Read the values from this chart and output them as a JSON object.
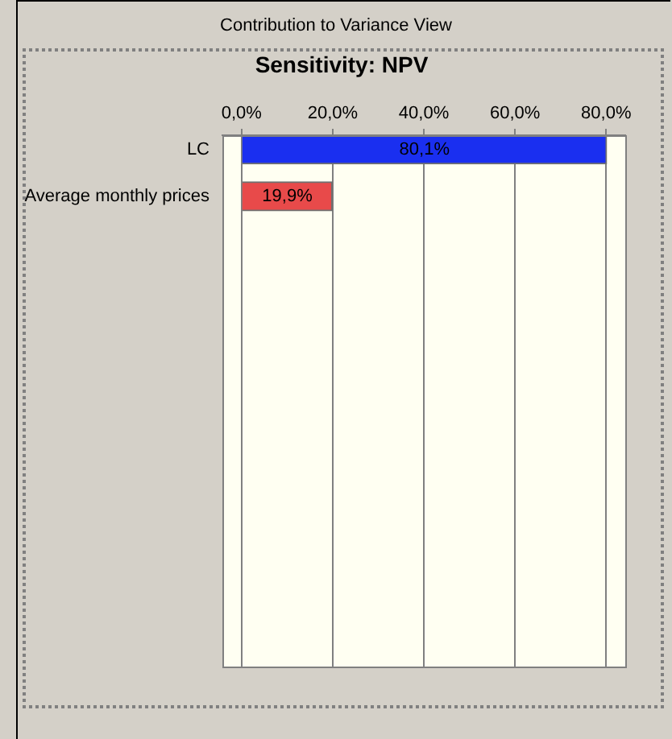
{
  "chart_data": {
    "type": "bar",
    "orientation": "horizontal",
    "title": "Sensitivity: NPV",
    "annotations": [
      "Contribution to Variance View"
    ],
    "categories": [
      "LC",
      "Average monthly prices"
    ],
    "values": [
      80.1,
      19.9
    ],
    "colors": [
      "#1a2ff0",
      "#e84a4a"
    ],
    "value_labels": [
      "80,1%",
      "19,9%"
    ],
    "xlim": [
      -4.2,
      84.2
    ],
    "xticks": [
      {
        "value": 0,
        "label": "0,0%"
      },
      {
        "value": 20,
        "label": "20,0%"
      },
      {
        "value": 40,
        "label": "40,0%"
      },
      {
        "value": 60,
        "label": "60,0%"
      },
      {
        "value": 80,
        "label": "80,0%"
      }
    ],
    "grid": "x",
    "legend": false
  }
}
